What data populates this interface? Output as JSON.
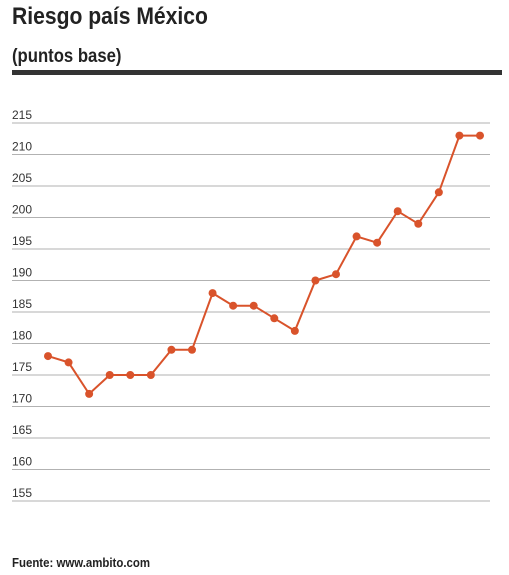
{
  "chart_data": {
    "type": "line",
    "title": "Riesgo país México",
    "subtitle": "(puntos base)",
    "source": "Fuente: www.ambito.com",
    "categories": [
      null,
      null,
      null,
      null,
      null,
      null,
      null,
      null,
      null,
      null,
      null,
      null,
      null,
      null,
      null,
      null,
      null,
      null,
      null,
      null,
      null,
      null
    ],
    "values": [
      178,
      177,
      172,
      175,
      175,
      175,
      179,
      179,
      188,
      186,
      186,
      184,
      182,
      190,
      191,
      197,
      196,
      201,
      199,
      204,
      213,
      213
    ],
    "color": "#d9532b",
    "ylim": [
      155,
      215
    ],
    "yticks": [
      155,
      160,
      165,
      170,
      175,
      180,
      185,
      190,
      195,
      200,
      205,
      210,
      215
    ],
    "grid": true
  }
}
